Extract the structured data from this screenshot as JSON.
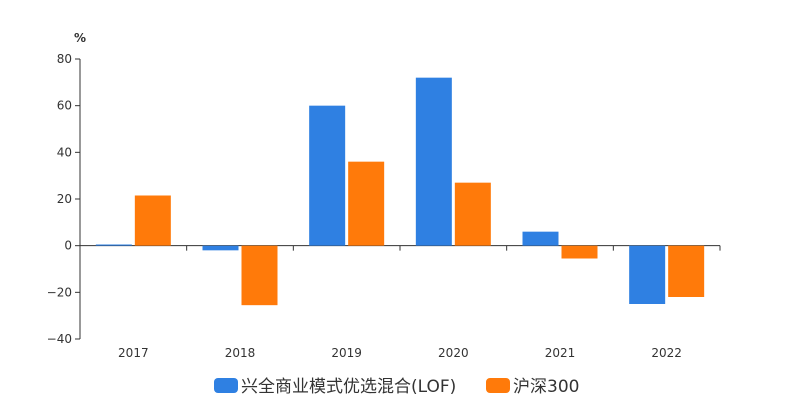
{
  "chart_data": {
    "type": "bar",
    "unit": "%",
    "categories": [
      "2017",
      "2018",
      "2019",
      "2020",
      "2021",
      "2022"
    ],
    "series": [
      {
        "name": "兴全商业模式优选混合(LOF)",
        "color": "#2f80e2",
        "values": [
          0.5,
          -2,
          60,
          72,
          6,
          -25
        ]
      },
      {
        "name": "沪深300",
        "color": "#ff7a0a",
        "values": [
          21.5,
          -25.5,
          36,
          27,
          -5.5,
          -22
        ]
      }
    ],
    "ylim": [
      -40,
      80
    ],
    "yticks": [
      "80",
      "60",
      "40",
      "20",
      "0",
      "−20",
      "−40"
    ],
    "ytick_values": [
      80,
      60,
      40,
      20,
      0,
      -20,
      -40
    ],
    "grid": false,
    "legend_position": "bottom-center"
  }
}
